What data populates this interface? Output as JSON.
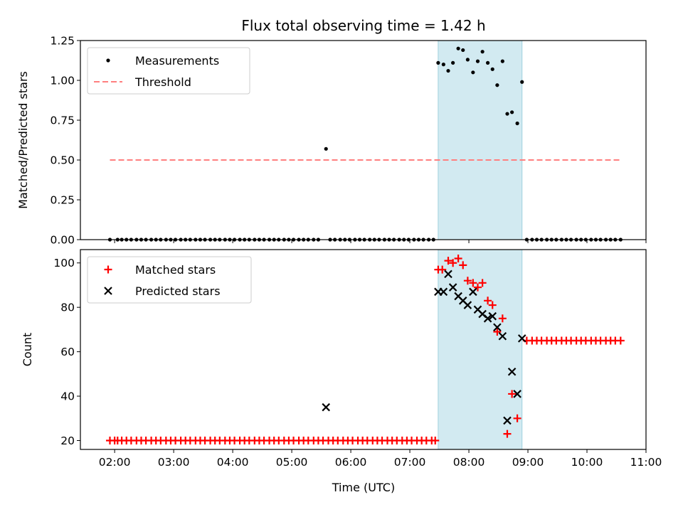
{
  "chart_data": {
    "title": "Flux total observing time = 1.42 h",
    "xlabel": "Time (UTC)",
    "x_unit": "hours UTC",
    "xlim": [
      1.42,
      11.0
    ],
    "xticks": [
      {
        "value": 2,
        "label": "02:00"
      },
      {
        "value": 3,
        "label": "03:00"
      },
      {
        "value": 4,
        "label": "04:00"
      },
      {
        "value": 5,
        "label": "05:00"
      },
      {
        "value": 6,
        "label": "06:00"
      },
      {
        "value": 7,
        "label": "07:00"
      },
      {
        "value": 8,
        "label": "08:00"
      },
      {
        "value": 9,
        "label": "09:00"
      },
      {
        "value": 10,
        "label": "10:00"
      },
      {
        "value": 11,
        "label": "11:00"
      }
    ],
    "shaded_interval": {
      "x0": 7.48,
      "x1": 8.9,
      "color": "#add8e6"
    },
    "panels": [
      {
        "type": "scatter",
        "ylabel": "Matched/Predicted stars",
        "ylim": [
          0,
          1.25
        ],
        "yticks": [
          {
            "value": 0,
            "label": "0.00"
          },
          {
            "value": 0.25,
            "label": "0.25"
          },
          {
            "value": 0.5,
            "label": "0.50"
          },
          {
            "value": 0.75,
            "label": "0.75"
          },
          {
            "value": 1.0,
            "label": "1.00"
          },
          {
            "value": 1.25,
            "label": "1.25"
          }
        ],
        "legend_position": "top-left",
        "series": [
          {
            "name": "Measurements",
            "marker": "dot",
            "color": "#000000",
            "points": [
              [
                1.92,
                0
              ],
              [
                2.05,
                0
              ],
              [
                2.12,
                0
              ],
              [
                2.2,
                0
              ],
              [
                2.28,
                0
              ],
              [
                2.37,
                0
              ],
              [
                2.45,
                0
              ],
              [
                2.53,
                0
              ],
              [
                2.62,
                0
              ],
              [
                2.7,
                0
              ],
              [
                2.78,
                0
              ],
              [
                2.87,
                0
              ],
              [
                2.95,
                0
              ],
              [
                3.03,
                0
              ],
              [
                3.12,
                0
              ],
              [
                3.2,
                0
              ],
              [
                3.28,
                0
              ],
              [
                3.37,
                0
              ],
              [
                3.45,
                0
              ],
              [
                3.53,
                0
              ],
              [
                3.62,
                0
              ],
              [
                3.7,
                0
              ],
              [
                3.78,
                0
              ],
              [
                3.87,
                0
              ],
              [
                3.95,
                0
              ],
              [
                4.03,
                0
              ],
              [
                4.12,
                0
              ],
              [
                4.2,
                0
              ],
              [
                4.28,
                0
              ],
              [
                4.37,
                0
              ],
              [
                4.45,
                0
              ],
              [
                4.53,
                0
              ],
              [
                4.62,
                0
              ],
              [
                4.7,
                0
              ],
              [
                4.78,
                0
              ],
              [
                4.87,
                0
              ],
              [
                4.95,
                0
              ],
              [
                5.03,
                0
              ],
              [
                5.12,
                0
              ],
              [
                5.2,
                0
              ],
              [
                5.28,
                0
              ],
              [
                5.37,
                0
              ],
              [
                5.45,
                0
              ],
              [
                5.58,
                0.57
              ],
              [
                5.65,
                0
              ],
              [
                5.73,
                0
              ],
              [
                5.82,
                0
              ],
              [
                5.9,
                0
              ],
              [
                5.98,
                0
              ],
              [
                6.07,
                0
              ],
              [
                6.15,
                0
              ],
              [
                6.23,
                0
              ],
              [
                6.32,
                0
              ],
              [
                6.4,
                0
              ],
              [
                6.48,
                0
              ],
              [
                6.57,
                0
              ],
              [
                6.65,
                0
              ],
              [
                6.73,
                0
              ],
              [
                6.82,
                0
              ],
              [
                6.9,
                0
              ],
              [
                6.98,
                0
              ],
              [
                7.07,
                0
              ],
              [
                7.15,
                0
              ],
              [
                7.23,
                0
              ],
              [
                7.32,
                0
              ],
              [
                7.4,
                0
              ],
              [
                7.48,
                1.11
              ],
              [
                7.57,
                1.1
              ],
              [
                7.65,
                1.06
              ],
              [
                7.73,
                1.11
              ],
              [
                7.82,
                1.2
              ],
              [
                7.9,
                1.19
              ],
              [
                7.98,
                1.13
              ],
              [
                8.07,
                1.05
              ],
              [
                8.15,
                1.12
              ],
              [
                8.23,
                1.18
              ],
              [
                8.32,
                1.11
              ],
              [
                8.4,
                1.07
              ],
              [
                8.48,
                0.97
              ],
              [
                8.57,
                1.12
              ],
              [
                8.65,
                0.79
              ],
              [
                8.73,
                0.8
              ],
              [
                8.82,
                0.73
              ],
              [
                8.9,
                0.99
              ],
              [
                8.98,
                0
              ],
              [
                9.07,
                0
              ],
              [
                9.15,
                0
              ],
              [
                9.23,
                0
              ],
              [
                9.32,
                0
              ],
              [
                9.4,
                0
              ],
              [
                9.48,
                0
              ],
              [
                9.57,
                0
              ],
              [
                9.65,
                0
              ],
              [
                9.73,
                0
              ],
              [
                9.82,
                0
              ],
              [
                9.9,
                0
              ],
              [
                9.98,
                0
              ],
              [
                10.07,
                0
              ],
              [
                10.15,
                0
              ],
              [
                10.23,
                0
              ],
              [
                10.32,
                0
              ],
              [
                10.4,
                0
              ],
              [
                10.48,
                0
              ],
              [
                10.57,
                0
              ]
            ]
          },
          {
            "name": "Threshold",
            "marker": "dashed-line",
            "color": "#ff7f7f",
            "points": [
              [
                1.92,
                0.5
              ],
              [
                10.57,
                0.5
              ]
            ]
          }
        ]
      },
      {
        "type": "scatter",
        "ylabel": "Count",
        "ylim": [
          16,
          106
        ],
        "yticks": [
          {
            "value": 20,
            "label": "20"
          },
          {
            "value": 40,
            "label": "40"
          },
          {
            "value": 60,
            "label": "60"
          },
          {
            "value": 80,
            "label": "80"
          },
          {
            "value": 100,
            "label": "100"
          }
        ],
        "legend_position": "top-left",
        "series": [
          {
            "name": "Matched stars",
            "marker": "plus",
            "color": "#ff0000",
            "points": [
              [
                1.92,
                20
              ],
              [
                2.0,
                20
              ],
              [
                2.05,
                20
              ],
              [
                2.12,
                20
              ],
              [
                2.2,
                20
              ],
              [
                2.28,
                20
              ],
              [
                2.37,
                20
              ],
              [
                2.45,
                20
              ],
              [
                2.53,
                20
              ],
              [
                2.62,
                20
              ],
              [
                2.7,
                20
              ],
              [
                2.78,
                20
              ],
              [
                2.87,
                20
              ],
              [
                2.95,
                20
              ],
              [
                3.03,
                20
              ],
              [
                3.12,
                20
              ],
              [
                3.2,
                20
              ],
              [
                3.28,
                20
              ],
              [
                3.37,
                20
              ],
              [
                3.45,
                20
              ],
              [
                3.53,
                20
              ],
              [
                3.62,
                20
              ],
              [
                3.7,
                20
              ],
              [
                3.78,
                20
              ],
              [
                3.87,
                20
              ],
              [
                3.95,
                20
              ],
              [
                4.03,
                20
              ],
              [
                4.12,
                20
              ],
              [
                4.2,
                20
              ],
              [
                4.28,
                20
              ],
              [
                4.37,
                20
              ],
              [
                4.45,
                20
              ],
              [
                4.53,
                20
              ],
              [
                4.62,
                20
              ],
              [
                4.7,
                20
              ],
              [
                4.78,
                20
              ],
              [
                4.87,
                20
              ],
              [
                4.95,
                20
              ],
              [
                5.03,
                20
              ],
              [
                5.12,
                20
              ],
              [
                5.2,
                20
              ],
              [
                5.28,
                20
              ],
              [
                5.37,
                20
              ],
              [
                5.45,
                20
              ],
              [
                5.53,
                20
              ],
              [
                5.62,
                20
              ],
              [
                5.7,
                20
              ],
              [
                5.78,
                20
              ],
              [
                5.87,
                20
              ],
              [
                5.95,
                20
              ],
              [
                6.03,
                20
              ],
              [
                6.12,
                20
              ],
              [
                6.2,
                20
              ],
              [
                6.28,
                20
              ],
              [
                6.37,
                20
              ],
              [
                6.45,
                20
              ],
              [
                6.53,
                20
              ],
              [
                6.62,
                20
              ],
              [
                6.7,
                20
              ],
              [
                6.78,
                20
              ],
              [
                6.87,
                20
              ],
              [
                6.95,
                20
              ],
              [
                7.03,
                20
              ],
              [
                7.12,
                20
              ],
              [
                7.2,
                20
              ],
              [
                7.28,
                20
              ],
              [
                7.37,
                20
              ],
              [
                7.43,
                20
              ],
              [
                7.48,
                97
              ],
              [
                7.55,
                97
              ],
              [
                7.65,
                101
              ],
              [
                7.73,
                100
              ],
              [
                7.82,
                102
              ],
              [
                7.9,
                99
              ],
              [
                7.98,
                92
              ],
              [
                8.07,
                91
              ],
              [
                8.15,
                89
              ],
              [
                8.23,
                91
              ],
              [
                8.32,
                83
              ],
              [
                8.4,
                81
              ],
              [
                8.48,
                69
              ],
              [
                8.57,
                75
              ],
              [
                8.65,
                23
              ],
              [
                8.73,
                41
              ],
              [
                8.82,
                30
              ],
              [
                8.98,
                65
              ],
              [
                9.07,
                65
              ],
              [
                9.15,
                65
              ],
              [
                9.23,
                65
              ],
              [
                9.32,
                65
              ],
              [
                9.4,
                65
              ],
              [
                9.48,
                65
              ],
              [
                9.57,
                65
              ],
              [
                9.65,
                65
              ],
              [
                9.73,
                65
              ],
              [
                9.82,
                65
              ],
              [
                9.9,
                65
              ],
              [
                9.98,
                65
              ],
              [
                10.07,
                65
              ],
              [
                10.15,
                65
              ],
              [
                10.23,
                65
              ],
              [
                10.32,
                65
              ],
              [
                10.4,
                65
              ],
              [
                10.48,
                65
              ],
              [
                10.57,
                65
              ]
            ]
          },
          {
            "name": "Predicted stars",
            "marker": "x",
            "color": "#000000",
            "points": [
              [
                5.58,
                35
              ],
              [
                7.48,
                87
              ],
              [
                7.57,
                87
              ],
              [
                7.65,
                95
              ],
              [
                7.73,
                89
              ],
              [
                7.82,
                85
              ],
              [
                7.9,
                83
              ],
              [
                7.98,
                81
              ],
              [
                8.07,
                87
              ],
              [
                8.15,
                79
              ],
              [
                8.23,
                77
              ],
              [
                8.32,
                75
              ],
              [
                8.4,
                76
              ],
              [
                8.48,
                71
              ],
              [
                8.57,
                67
              ],
              [
                8.65,
                29
              ],
              [
                8.73,
                51
              ],
              [
                8.82,
                41
              ],
              [
                8.9,
                66
              ]
            ]
          }
        ]
      }
    ]
  }
}
